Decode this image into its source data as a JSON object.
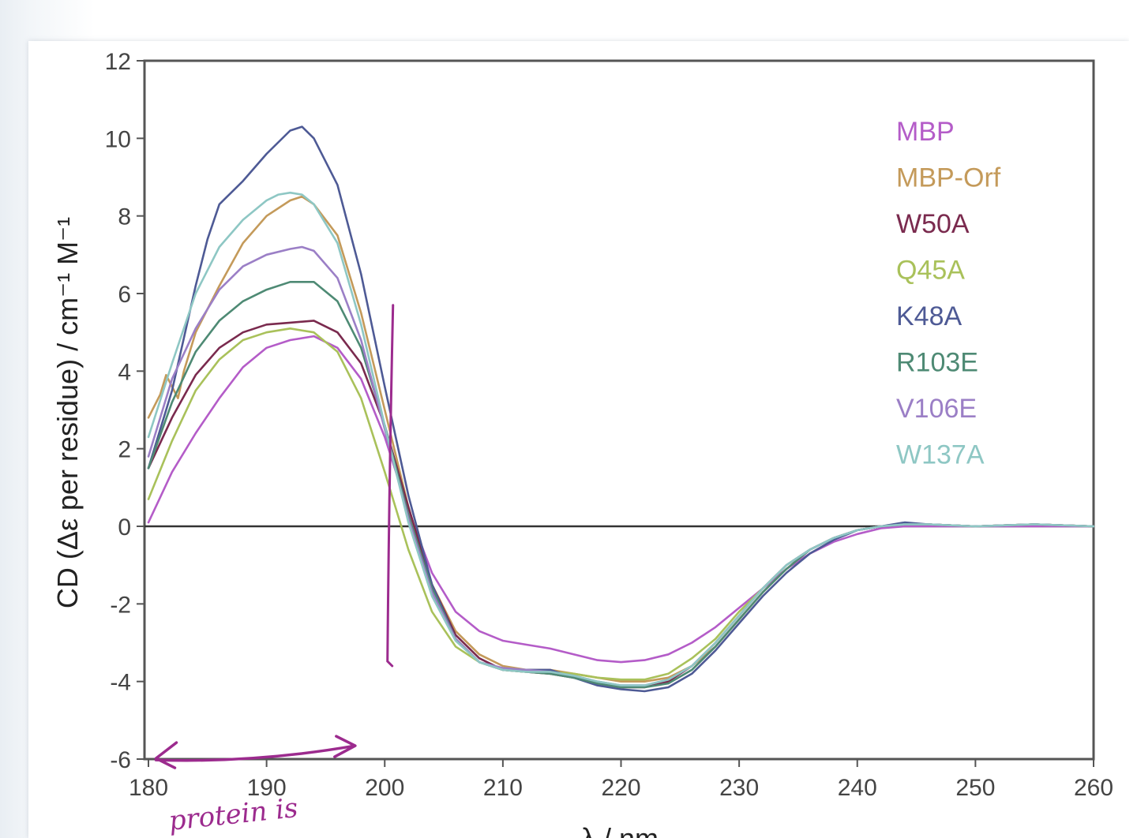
{
  "chart_data": {
    "type": "line",
    "title": "",
    "xlabel": "λ / nm",
    "ylabel": "CD (Δε per residue) / cm⁻¹ M⁻¹",
    "xlim": [
      180,
      260
    ],
    "ylim": [
      -6,
      12
    ],
    "xticks": [
      180,
      190,
      200,
      210,
      220,
      230,
      240,
      250,
      260
    ],
    "yticks": [
      -6,
      -4,
      -2,
      0,
      2,
      4,
      6,
      8,
      10,
      12
    ],
    "xtick_labels": [
      "180",
      "190",
      "200",
      "210",
      "220",
      "230",
      "240",
      "250",
      "260"
    ],
    "ytick_labels": [
      "-6",
      "-4",
      "-2",
      "0",
      "2",
      "4",
      "6",
      "8",
      "10",
      "12"
    ],
    "grid": false,
    "zero_line": true,
    "legend_position": "top-right",
    "series": [
      {
        "name": "MBP",
        "color": "#b45cc8",
        "x": [
          180,
          182,
          184,
          186,
          188,
          190,
          192,
          194,
          196,
          198,
          200,
          202,
          204,
          206,
          208,
          210,
          212,
          214,
          216,
          218,
          220,
          222,
          224,
          226,
          228,
          230,
          232,
          234,
          236,
          238,
          240,
          242,
          244,
          246,
          248,
          250,
          255,
          260
        ],
        "y": [
          0.1,
          1.4,
          2.4,
          3.3,
          4.1,
          4.6,
          4.8,
          4.9,
          4.6,
          3.8,
          2.3,
          0.4,
          -1.2,
          -2.2,
          -2.7,
          -2.95,
          -3.05,
          -3.15,
          -3.3,
          -3.45,
          -3.5,
          -3.45,
          -3.3,
          -3.0,
          -2.6,
          -2.1,
          -1.6,
          -1.1,
          -0.7,
          -0.4,
          -0.2,
          -0.05,
          0.0,
          0.0,
          0.0,
          0.0,
          0.0,
          0.0
        ]
      },
      {
        "name": "MBP-Orf",
        "color": "#c49a5a",
        "x": [
          180,
          181,
          181.5,
          182,
          182.5,
          183,
          184,
          186,
          188,
          190,
          192,
          193,
          194,
          196,
          198,
          200,
          202,
          204,
          206,
          208,
          210,
          212,
          214,
          216,
          218,
          220,
          222,
          224,
          226,
          228,
          230,
          232,
          234,
          236,
          238,
          240,
          242,
          244,
          246,
          250,
          255,
          260
        ],
        "y": [
          2.8,
          3.4,
          3.9,
          3.6,
          3.3,
          4.0,
          5.0,
          6.2,
          7.3,
          8.0,
          8.4,
          8.5,
          8.3,
          7.5,
          5.5,
          3.0,
          0.5,
          -1.5,
          -2.7,
          -3.3,
          -3.6,
          -3.7,
          -3.7,
          -3.8,
          -3.9,
          -4.0,
          -4.0,
          -3.9,
          -3.6,
          -3.1,
          -2.4,
          -1.7,
          -1.1,
          -0.6,
          -0.3,
          -0.1,
          0.0,
          0.05,
          0.05,
          0.0,
          0.05,
          0.0
        ]
      },
      {
        "name": "W50A",
        "color": "#7a2a4e",
        "x": [
          180,
          182,
          184,
          186,
          188,
          190,
          192,
          194,
          196,
          198,
          200,
          202,
          204,
          206,
          208,
          210,
          212,
          214,
          216,
          218,
          220,
          222,
          224,
          226,
          228,
          230,
          232,
          234,
          236,
          238,
          240,
          242,
          244,
          246,
          250,
          255,
          260
        ],
        "y": [
          1.5,
          2.8,
          3.9,
          4.6,
          5.0,
          5.2,
          5.25,
          5.3,
          5.0,
          4.2,
          2.6,
          0.5,
          -1.5,
          -2.8,
          -3.4,
          -3.7,
          -3.75,
          -3.8,
          -3.9,
          -4.05,
          -4.15,
          -4.15,
          -4.0,
          -3.6,
          -3.0,
          -2.3,
          -1.6,
          -1.0,
          -0.6,
          -0.3,
          -0.1,
          0.0,
          0.05,
          0.05,
          0.0,
          0.05,
          0.0
        ]
      },
      {
        "name": "Q45A",
        "color": "#a9c15a",
        "x": [
          180,
          182,
          184,
          186,
          188,
          190,
          192,
          194,
          196,
          198,
          200,
          202,
          204,
          206,
          208,
          210,
          212,
          214,
          216,
          218,
          220,
          222,
          224,
          226,
          228,
          230,
          232,
          234,
          236,
          238,
          240,
          242,
          244,
          246,
          250,
          255,
          260
        ],
        "y": [
          0.7,
          2.2,
          3.5,
          4.3,
          4.8,
          5.0,
          5.1,
          5.0,
          4.5,
          3.3,
          1.4,
          -0.6,
          -2.2,
          -3.1,
          -3.5,
          -3.7,
          -3.75,
          -3.75,
          -3.8,
          -3.9,
          -3.95,
          -3.95,
          -3.8,
          -3.4,
          -2.9,
          -2.2,
          -1.6,
          -1.0,
          -0.6,
          -0.3,
          -0.1,
          0.0,
          0.05,
          0.05,
          0.0,
          0.05,
          0.0
        ]
      },
      {
        "name": "K48A",
        "color": "#4e5a95",
        "x": [
          180,
          182,
          184,
          185,
          186,
          188,
          190,
          192,
          193,
          194,
          196,
          198,
          200,
          202,
          204,
          206,
          208,
          210,
          212,
          214,
          216,
          218,
          220,
          222,
          224,
          226,
          228,
          230,
          232,
          234,
          236,
          238,
          240,
          242,
          244,
          246,
          250,
          255,
          260
        ],
        "y": [
          1.5,
          3.5,
          6.2,
          7.4,
          8.3,
          8.9,
          9.6,
          10.2,
          10.3,
          10.0,
          8.8,
          6.5,
          3.6,
          0.8,
          -1.5,
          -2.9,
          -3.5,
          -3.7,
          -3.7,
          -3.7,
          -3.9,
          -4.1,
          -4.2,
          -4.25,
          -4.15,
          -3.8,
          -3.2,
          -2.5,
          -1.8,
          -1.2,
          -0.7,
          -0.35,
          -0.1,
          0.0,
          0.1,
          0.05,
          0.0,
          0.05,
          0.0
        ]
      },
      {
        "name": "R103E",
        "color": "#4e8a74",
        "x": [
          180,
          182,
          184,
          186,
          188,
          190,
          192,
          194,
          196,
          198,
          200,
          202,
          204,
          206,
          208,
          210,
          212,
          214,
          216,
          218,
          220,
          222,
          224,
          226,
          228,
          230,
          232,
          234,
          236,
          238,
          240,
          242,
          244,
          246,
          250,
          255,
          260
        ],
        "y": [
          1.5,
          3.2,
          4.5,
          5.3,
          5.8,
          6.1,
          6.3,
          6.3,
          5.8,
          4.6,
          2.6,
          0.3,
          -1.6,
          -2.9,
          -3.5,
          -3.7,
          -3.75,
          -3.8,
          -3.9,
          -4.05,
          -4.15,
          -4.15,
          -4.05,
          -3.7,
          -3.1,
          -2.4,
          -1.7,
          -1.1,
          -0.6,
          -0.3,
          -0.1,
          0.0,
          0.05,
          0.05,
          0.0,
          0.05,
          0.0
        ]
      },
      {
        "name": "V106E",
        "color": "#9b7fc6",
        "x": [
          180,
          182,
          184,
          186,
          188,
          190,
          192,
          193,
          194,
          196,
          198,
          200,
          202,
          204,
          206,
          208,
          210,
          212,
          214,
          216,
          218,
          220,
          222,
          224,
          226,
          228,
          230,
          232,
          234,
          236,
          238,
          240,
          242,
          244,
          246,
          250,
          255,
          260
        ],
        "y": [
          1.8,
          3.8,
          5.1,
          6.1,
          6.7,
          7.0,
          7.15,
          7.2,
          7.1,
          6.4,
          4.8,
          2.5,
          0.2,
          -1.7,
          -2.9,
          -3.5,
          -3.65,
          -3.7,
          -3.75,
          -3.85,
          -4.0,
          -4.1,
          -4.1,
          -3.95,
          -3.6,
          -3.0,
          -2.3,
          -1.6,
          -1.0,
          -0.6,
          -0.3,
          -0.1,
          0.0,
          0.05,
          0.05,
          0.0,
          0.05,
          0.0
        ]
      },
      {
        "name": "W137A",
        "color": "#8ec7c4",
        "x": [
          180,
          182,
          184,
          186,
          188,
          190,
          191,
          192,
          193,
          194,
          196,
          198,
          200,
          202,
          204,
          206,
          208,
          210,
          212,
          214,
          216,
          218,
          220,
          222,
          224,
          226,
          228,
          230,
          232,
          234,
          236,
          238,
          240,
          242,
          244,
          246,
          250,
          255,
          260
        ],
        "y": [
          2.3,
          4.2,
          6.0,
          7.2,
          7.9,
          8.4,
          8.55,
          8.6,
          8.55,
          8.3,
          7.3,
          5.2,
          2.6,
          0.1,
          -1.8,
          -2.95,
          -3.5,
          -3.7,
          -3.75,
          -3.75,
          -3.85,
          -4.0,
          -4.1,
          -4.1,
          -3.95,
          -3.6,
          -3.0,
          -2.3,
          -1.6,
          -1.0,
          -0.6,
          -0.3,
          -0.1,
          0.0,
          0.05,
          0.05,
          0.0,
          0.05,
          0.0
        ]
      }
    ],
    "annotations": {
      "handwritten_note": "protein is",
      "note_color": "#9c2b8e",
      "vertical_mark_x": 200.5,
      "vertical_mark_y": [
        -3.6,
        5.7
      ],
      "arrow_x": [
        180.5,
        197.5
      ],
      "arrow_y": -5.9
    }
  }
}
